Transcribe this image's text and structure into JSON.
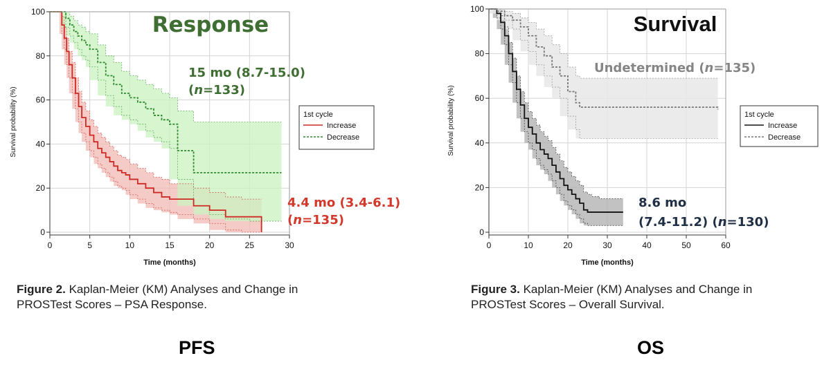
{
  "colors": {
    "response_green": "#3f6e32",
    "pfs_red": "#d2382c",
    "curve_red": "#cc2a22",
    "curve_green": "#2e8b2e",
    "band_red": "#f2b9b4",
    "band_green": "#c9f3c0",
    "os_navy": "#1f2f45",
    "os_gray": "#858585",
    "curve_black": "#111111",
    "curve_gray": "#777777",
    "band_dark": "#b3b3b3",
    "band_light": "#e8e8e8",
    "grid": "#d4d4d4"
  },
  "captions": {
    "fig2_label": "Figure 2.",
    "fig2_text": " Kaplan-Meier (KM) Analyses and Change in",
    "fig2_line2": "PROSTest Scores – PSA Response.",
    "fig3_label": "Figure 3.",
    "fig3_text": " Kaplan-Meier (KM) Analyses and Change in",
    "fig3_line2": "PROSTest Scores – Overall Survival."
  },
  "bottom_labels": {
    "left": "PFS",
    "right": "OS"
  },
  "chart_data": [
    {
      "type": "line",
      "title": "Response",
      "xlabel": "Time (months)",
      "ylabel": "Survival probability (%)",
      "xlim": [
        0,
        30
      ],
      "ylim": [
        0,
        100
      ],
      "xticks": [
        0,
        5,
        10,
        15,
        20,
        25,
        30
      ],
      "yticks": [
        0,
        20,
        40,
        60,
        80,
        100
      ],
      "grid": true,
      "legend": {
        "title": "1st cycle",
        "placement": "right",
        "entries": [
          "Increase",
          "Decrease"
        ]
      },
      "annotations": [
        {
          "series": "Decrease",
          "line1": "15 mo (8.7-15.0)",
          "line2_pre": "(",
          "line2_n": "n",
          "line2_post": "=133)"
        },
        {
          "series": "Increase",
          "line1": "4.4 mo (3.4-6.1)",
          "line2_pre": "(",
          "line2_n": "n",
          "line2_post": "=135)"
        }
      ],
      "series": [
        {
          "name": "Increase",
          "style": "solid",
          "x": [
            0,
            1.2,
            1.5,
            1.8,
            2.1,
            2.4,
            2.8,
            3.2,
            3.6,
            4,
            4.5,
            5,
            5.5,
            6,
            6.5,
            7,
            7.5,
            8,
            8.5,
            9,
            9.5,
            10,
            11,
            12,
            13,
            14,
            15,
            16,
            18,
            20,
            22,
            24,
            26.2,
            26.5
          ],
          "y": [
            100,
            100,
            94,
            88,
            82,
            76,
            70,
            63,
            57,
            52,
            48,
            44,
            41,
            38,
            36,
            34,
            32,
            30,
            28,
            27,
            26,
            24,
            22,
            20,
            18,
            16,
            15,
            15,
            12,
            10,
            7,
            7,
            7,
            0
          ],
          "lower": [
            100,
            100,
            90,
            83,
            76,
            70,
            63,
            56,
            50,
            45,
            41,
            37,
            34,
            31,
            29,
            27,
            25,
            23,
            21,
            20,
            19,
            17,
            15,
            13,
            11,
            10,
            9,
            8,
            6,
            4,
            1,
            0,
            0,
            0
          ],
          "upper": [
            100,
            100,
            98,
            93,
            88,
            82,
            77,
            70,
            64,
            59,
            55,
            51,
            48,
            45,
            43,
            41,
            39,
            37,
            35,
            34,
            33,
            31,
            29,
            27,
            25,
            24,
            22,
            22,
            20,
            18,
            16,
            15,
            15,
            15
          ]
        },
        {
          "name": "Decrease",
          "style": "dashed",
          "x": [
            0,
            1.5,
            2,
            2.5,
            3,
            3.5,
            4,
            4.5,
            5,
            6,
            7,
            8,
            9,
            10,
            11,
            12,
            13,
            14,
            15,
            16,
            18,
            20,
            22,
            25,
            29
          ],
          "y": [
            100,
            100,
            97,
            94,
            91,
            89,
            87,
            85,
            83,
            77,
            71,
            67,
            63,
            61,
            59,
            56,
            53,
            51,
            49,
            37,
            27,
            27,
            27,
            27,
            27
          ],
          "lower": [
            100,
            100,
            93,
            89,
            86,
            83,
            80,
            78,
            75,
            69,
            62,
            57,
            53,
            51,
            49,
            46,
            43,
            41,
            38,
            24,
            12,
            8,
            6,
            5,
            5
          ],
          "upper": [
            100,
            100,
            100,
            98,
            96,
            94,
            93,
            91,
            90,
            85,
            80,
            77,
            73,
            71,
            69,
            67,
            65,
            63,
            61,
            55,
            50,
            50,
            50,
            50,
            50
          ]
        }
      ]
    },
    {
      "type": "line",
      "title": "Survival",
      "xlabel": "Time (months)",
      "ylabel": "Survival probability (%)",
      "xlim": [
        0,
        60
      ],
      "ylim": [
        0,
        100
      ],
      "xticks": [
        0,
        10,
        20,
        30,
        40,
        50,
        60
      ],
      "yticks": [
        0,
        20,
        40,
        60,
        80,
        100
      ],
      "grid": true,
      "legend": {
        "title": "1st cycle",
        "placement": "right",
        "entries": [
          "Increase",
          "Decrease"
        ]
      },
      "annotations": [
        {
          "series": "Decrease",
          "line1_pre": "Undetermined (",
          "line1_n": "n",
          "line1_post": "=135)"
        },
        {
          "series": "Increase",
          "line1": "8.6 mo",
          "line2_pre": "(7.4-11.2) (",
          "line2_n": "n",
          "line2_post": "=130)"
        }
      ],
      "series": [
        {
          "name": "Increase",
          "style": "solid",
          "x": [
            0,
            1,
            2,
            3,
            4,
            5,
            6,
            7,
            8,
            9,
            10,
            11,
            12,
            13,
            14,
            15,
            16,
            17,
            18,
            19,
            20,
            21,
            22,
            23,
            24,
            25,
            26,
            28,
            30,
            34
          ],
          "y": [
            100,
            100,
            98,
            94,
            88,
            80,
            72,
            64,
            57,
            51,
            47,
            44,
            40,
            37,
            35,
            33,
            30,
            27,
            24,
            21,
            19,
            17,
            15,
            13,
            10,
            9,
            9,
            9,
            9,
            9
          ],
          "lower": [
            100,
            100,
            96,
            91,
            84,
            75,
            67,
            58,
            51,
            45,
            40,
            37,
            33,
            30,
            28,
            26,
            23,
            20,
            17,
            14,
            12,
            10,
            8,
            6,
            4,
            3,
            3,
            3,
            3,
            3
          ],
          "upper": [
            100,
            100,
            100,
            97,
            92,
            85,
            78,
            70,
            63,
            58,
            54,
            51,
            48,
            45,
            43,
            41,
            38,
            35,
            32,
            29,
            27,
            25,
            23,
            21,
            18,
            17,
            16,
            15,
            15,
            15
          ]
        },
        {
          "name": "Decrease",
          "style": "dashed",
          "x": [
            0,
            2,
            4,
            6,
            8,
            10,
            12,
            14,
            16,
            18,
            20,
            22,
            23,
            25,
            30,
            40,
            50,
            58
          ],
          "y": [
            100,
            99,
            97,
            95,
            92,
            88,
            83,
            79,
            74,
            70,
            63,
            58,
            56,
            56,
            56,
            56,
            56,
            55
          ],
          "lower": [
            100,
            98,
            95,
            91,
            86,
            81,
            75,
            70,
            65,
            60,
            52,
            46,
            42,
            42,
            42,
            42,
            42,
            42
          ],
          "upper": [
            100,
            100,
            99,
            98,
            96,
            94,
            91,
            88,
            84,
            80,
            74,
            70,
            69,
            69,
            69,
            69,
            69,
            69
          ]
        }
      ]
    }
  ]
}
